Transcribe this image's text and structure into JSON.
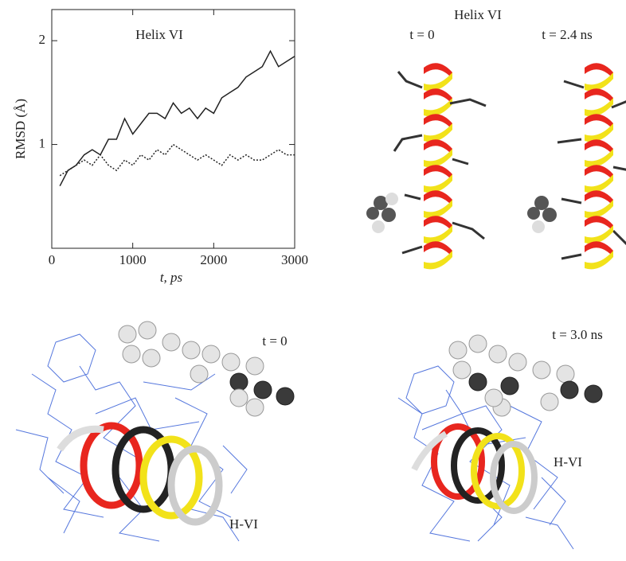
{
  "chart_data": {
    "type": "line",
    "title": "Helix VI",
    "xlabel": "t, ps",
    "ylabel": "RMSD (Å)",
    "x": [
      100,
      200,
      300,
      400,
      500,
      600,
      700,
      800,
      900,
      1000,
      1100,
      1200,
      1300,
      1400,
      1500,
      1600,
      1700,
      1800,
      1900,
      2000,
      2100,
      2200,
      2300,
      2400,
      2500,
      2600,
      2700,
      2800,
      2900,
      3000
    ],
    "series": [
      {
        "color": "#222222",
        "dash": "solid",
        "values": [
          0.6,
          0.75,
          0.8,
          0.9,
          0.95,
          0.9,
          1.05,
          1.05,
          1.25,
          1.1,
          1.2,
          1.3,
          1.3,
          1.25,
          1.4,
          1.3,
          1.35,
          1.25,
          1.35,
          1.3,
          1.45,
          1.5,
          1.55,
          1.65,
          1.7,
          1.75,
          1.9,
          1.75,
          1.8,
          1.85
        ]
      },
      {
        "color": "#222222",
        "dash": "dotted",
        "values": [
          0.7,
          0.75,
          0.8,
          0.85,
          0.8,
          0.9,
          0.8,
          0.75,
          0.85,
          0.8,
          0.9,
          0.85,
          0.95,
          0.9,
          1.0,
          0.95,
          0.9,
          0.85,
          0.9,
          0.85,
          0.8,
          0.9,
          0.85,
          0.9,
          0.85,
          0.85,
          0.9,
          0.95,
          0.9,
          0.9
        ]
      }
    ],
    "xlim": [
      0,
      3000
    ],
    "xticks": [
      0,
      1000,
      2000,
      3000
    ],
    "ylim": [
      0,
      2.3
    ],
    "yticks": [
      1,
      2
    ],
    "grid": false
  },
  "images": [
    {
      "title": "Helix VI",
      "labels": [
        "t = 0",
        "t = 2.4 ns"
      ]
    },
    {
      "labels": [
        "t = 0",
        "H-VI"
      ]
    },
    {
      "labels": [
        "t = 3.0 ns",
        "H-VI"
      ]
    }
  ]
}
